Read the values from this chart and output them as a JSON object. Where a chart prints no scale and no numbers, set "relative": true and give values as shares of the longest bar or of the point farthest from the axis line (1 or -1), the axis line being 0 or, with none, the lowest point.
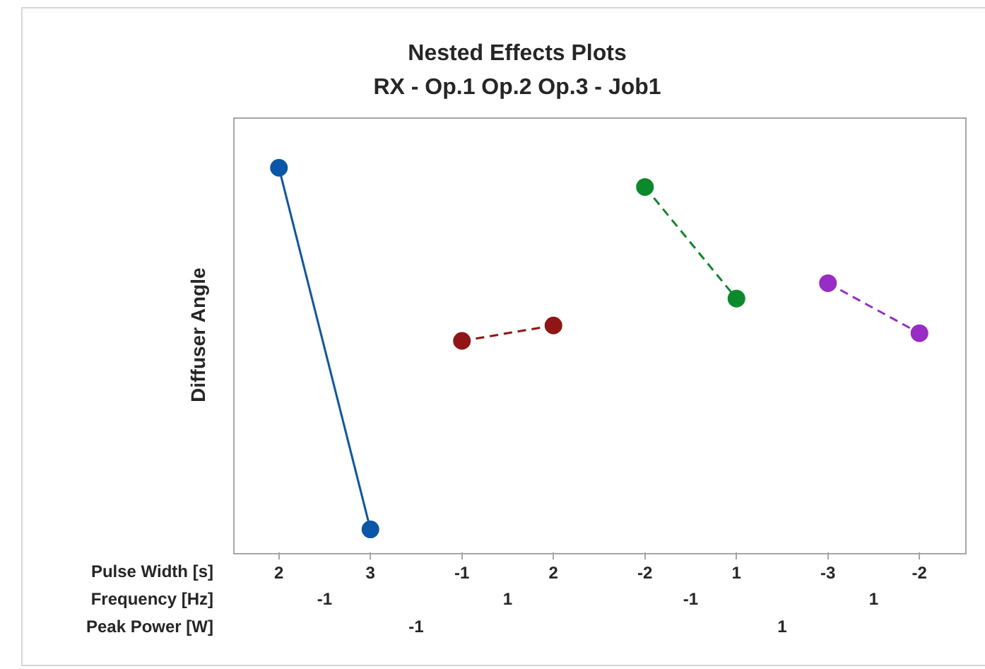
{
  "chart_data": {
    "type": "line",
    "title": "Nested Effects Plots",
    "subtitle": "RX - Op.1 Op.2 Op.3 - Job1",
    "ylabel": "Diffuser Angle",
    "xlabel": "Pulse Width [s]",
    "categories": [
      "2",
      "3",
      "-1",
      "2",
      "-2",
      "1",
      "-3",
      "-2"
    ],
    "relative": true,
    "marker": "circle",
    "annotations": [
      "Frequency [Hz]",
      "-1",
      "1",
      "-1",
      "1",
      "Peak Power [W]",
      "-1",
      "1"
    ],
    "series": [
      {
        "color": "#0a56a8",
        "line_style": "solid",
        "values": [
          1,
          0.06,
          null,
          null,
          null,
          null,
          null,
          null
        ]
      },
      {
        "color": "#921515",
        "line_style": "dashed",
        "values": [
          null,
          null,
          0.55,
          0.59,
          null,
          null,
          null,
          null
        ]
      },
      {
        "color": "#0a8a2a",
        "line_style": "dashed",
        "values": [
          null,
          null,
          null,
          null,
          0.95,
          0.66,
          null,
          null
        ]
      },
      {
        "color": "#9a2cc6",
        "line_style": "dashed",
        "values": [
          null,
          null,
          null,
          null,
          null,
          null,
          0.7,
          0.57
        ]
      }
    ]
  }
}
